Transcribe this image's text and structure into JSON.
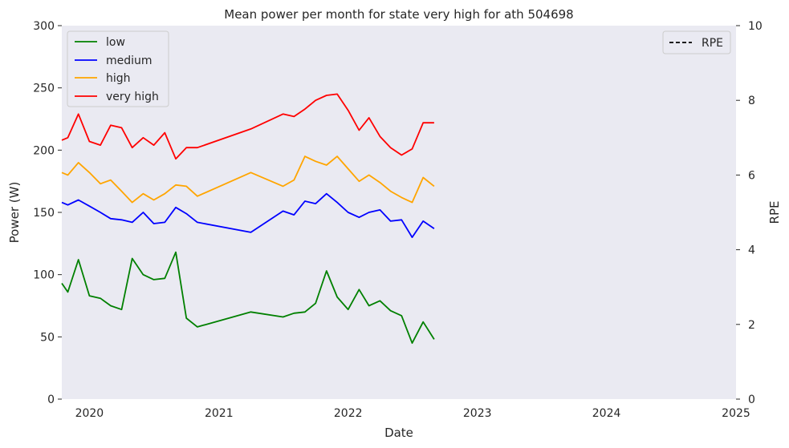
{
  "chart_data": {
    "type": "line",
    "title": "Mean power per month for state very high for ath 504698",
    "xlabel": "Date",
    "ylabel": "Power (W)",
    "y2label": "RPE",
    "xlim": [
      "2019-10-15",
      "2025-01-01"
    ],
    "ylim": [
      0,
      300
    ],
    "y2lim": [
      0,
      10
    ],
    "xticks": [
      {
        "date": "2020-01-01",
        "label": "2020"
      },
      {
        "date": "2021-01-01",
        "label": "2021"
      },
      {
        "date": "2022-01-01",
        "label": "2022"
      },
      {
        "date": "2023-01-01",
        "label": "2023"
      },
      {
        "date": "2024-01-01",
        "label": "2024"
      },
      {
        "date": "2025-01-01",
        "label": "2025"
      }
    ],
    "yticks": [
      0,
      50,
      100,
      150,
      200,
      250,
      300
    ],
    "y2ticks": [
      0,
      2,
      4,
      6,
      8,
      10
    ],
    "grid": false,
    "legend_position": "top-left",
    "legend2_position": "top-right",
    "background_color": "#eaeaf2",
    "series": [
      {
        "name": "low",
        "color": "#008000",
        "x": [
          "2019-10-15",
          "2019-11-01",
          "2019-12-01",
          "2020-01-01",
          "2020-02-01",
          "2020-03-01",
          "2020-04-01",
          "2020-05-01",
          "2020-06-01",
          "2020-07-01",
          "2020-08-01",
          "2020-09-01",
          "2020-10-01",
          "2020-11-01",
          "2021-04-01",
          "2021-07-01",
          "2021-08-01",
          "2021-09-01",
          "2021-10-01",
          "2021-11-01",
          "2021-12-01",
          "2022-01-01",
          "2022-02-01",
          "2022-03-01",
          "2022-04-01",
          "2022-05-01",
          "2022-06-01",
          "2022-07-01",
          "2022-08-01",
          "2022-09-01"
        ],
        "values": [
          93,
          86,
          112,
          83,
          81,
          75,
          72,
          113,
          100,
          96,
          97,
          118,
          65,
          58,
          70,
          66,
          69,
          70,
          77,
          103,
          82,
          72,
          88,
          75,
          79,
          71,
          67,
          45,
          62,
          48
        ]
      },
      {
        "name": "medium",
        "color": "#0000ff",
        "x": [
          "2019-10-15",
          "2019-11-01",
          "2019-12-01",
          "2020-01-01",
          "2020-02-01",
          "2020-03-01",
          "2020-04-01",
          "2020-05-01",
          "2020-06-01",
          "2020-07-01",
          "2020-08-01",
          "2020-09-01",
          "2020-10-01",
          "2020-11-01",
          "2021-04-01",
          "2021-07-01",
          "2021-08-01",
          "2021-09-01",
          "2021-10-01",
          "2021-11-01",
          "2021-12-01",
          "2022-01-01",
          "2022-02-01",
          "2022-03-01",
          "2022-04-01",
          "2022-05-01",
          "2022-06-01",
          "2022-07-01",
          "2022-08-01",
          "2022-09-01"
        ],
        "values": [
          158,
          156,
          160,
          155,
          150,
          145,
          144,
          142,
          150,
          141,
          142,
          154,
          149,
          142,
          134,
          151,
          148,
          159,
          157,
          165,
          158,
          150,
          146,
          150,
          152,
          143,
          144,
          130,
          143,
          137
        ]
      },
      {
        "name": "high",
        "color": "#ffa500",
        "x": [
          "2019-10-15",
          "2019-11-01",
          "2019-12-01",
          "2020-01-01",
          "2020-02-01",
          "2020-03-01",
          "2020-04-01",
          "2020-05-01",
          "2020-06-01",
          "2020-07-01",
          "2020-08-01",
          "2020-09-01",
          "2020-10-01",
          "2020-11-01",
          "2021-04-01",
          "2021-07-01",
          "2021-08-01",
          "2021-09-01",
          "2021-10-01",
          "2021-11-01",
          "2021-12-01",
          "2022-01-01",
          "2022-02-01",
          "2022-03-01",
          "2022-04-01",
          "2022-05-01",
          "2022-06-01",
          "2022-07-01",
          "2022-08-01",
          "2022-09-01"
        ],
        "values": [
          182,
          180,
          190,
          182,
          173,
          176,
          167,
          158,
          165,
          160,
          165,
          172,
          171,
          163,
          182,
          171,
          176,
          195,
          191,
          188,
          195,
          185,
          175,
          180,
          174,
          167,
          162,
          158,
          178,
          171
        ]
      },
      {
        "name": "very high",
        "color": "#ff0000",
        "x": [
          "2019-10-15",
          "2019-11-01",
          "2019-12-01",
          "2020-01-01",
          "2020-02-01",
          "2020-03-01",
          "2020-04-01",
          "2020-05-01",
          "2020-06-01",
          "2020-07-01",
          "2020-08-01",
          "2020-09-01",
          "2020-10-01",
          "2020-11-01",
          "2021-04-01",
          "2021-07-01",
          "2021-08-01",
          "2021-09-01",
          "2021-10-01",
          "2021-11-01",
          "2021-12-01",
          "2022-01-01",
          "2022-02-01",
          "2022-03-01",
          "2022-04-01",
          "2022-05-01",
          "2022-06-01",
          "2022-07-01",
          "2022-08-01",
          "2022-09-01"
        ],
        "values": [
          208,
          210,
          229,
          207,
          204,
          220,
          218,
          202,
          210,
          204,
          214,
          193,
          202,
          202,
          217,
          229,
          227,
          233,
          240,
          244,
          245,
          232,
          216,
          226,
          211,
          202,
          196,
          201,
          222,
          222
        ]
      }
    ],
    "series2": [
      {
        "name": "RPE",
        "color": "#000000",
        "dashed": true,
        "x": [],
        "values": []
      }
    ]
  }
}
